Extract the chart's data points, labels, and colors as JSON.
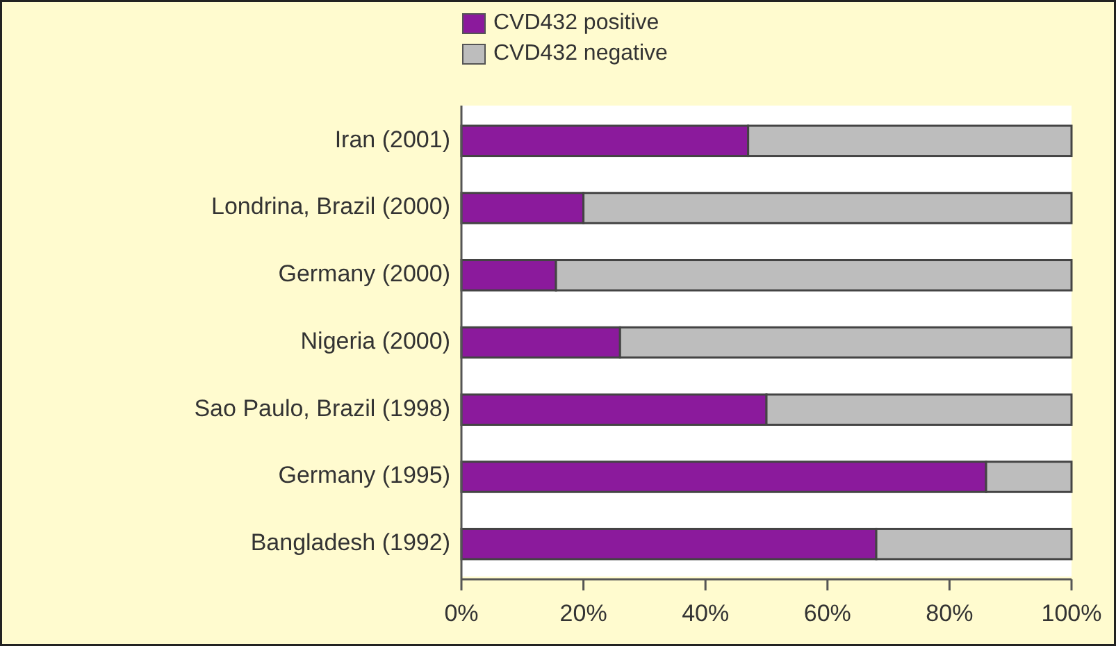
{
  "chart_data": {
    "type": "bar",
    "orientation": "horizontal",
    "stacked": true,
    "categories": [
      "Iran (2001)",
      "Londrina, Brazil (2000)",
      "Germany (2000)",
      "Nigeria (2000)",
      "Sao Paulo, Brazil (1998)",
      "Germany (1995)",
      "Bangladesh (1992)"
    ],
    "series": [
      {
        "name": "CVD432 positive",
        "color": "#8b1a9c",
        "values": [
          47,
          20,
          15.5,
          26,
          50,
          86,
          68
        ]
      },
      {
        "name": "CVD432 negative",
        "color": "#bdbdbd",
        "values": [
          53,
          80,
          84.5,
          74,
          50,
          14,
          32
        ]
      }
    ],
    "xlim": [
      0,
      100
    ],
    "xticks": [
      {
        "value": 0,
        "label": "0%"
      },
      {
        "value": 20,
        "label": "20%"
      },
      {
        "value": 40,
        "label": "40%"
      },
      {
        "value": 60,
        "label": "60%"
      },
      {
        "value": 80,
        "label": "80%"
      },
      {
        "value": 100,
        "label": "100%"
      }
    ],
    "legend": "top left",
    "grid": false
  }
}
